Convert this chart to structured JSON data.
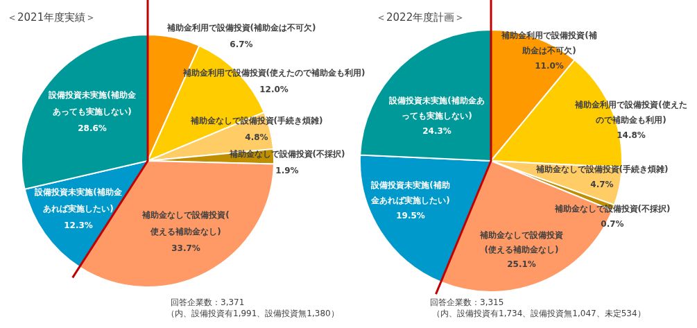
{
  "chart_data": [
    {
      "type": "pie",
      "title": "＜2021年度実績＞",
      "categories": [
        "補助金利用で設備投資(補助金は不可欠)",
        "補助金利用で設備投資(使えたので補助金も利用)",
        "補助金なしで設備投資(手続き煩雑)",
        "補助金なしで設備投資(不採択)",
        "補助金なしで設備投資(使える補助金なし)",
        "設備投資未実施(補助金あれば実施したい)",
        "設備投資未実施(補助金あっても実施しない)"
      ],
      "values": [
        6.7,
        12.0,
        4.8,
        1.9,
        33.7,
        12.3,
        28.6
      ],
      "value_labels": [
        "6.7%",
        "12.0%",
        "4.8%",
        "1.9%",
        "33.7%",
        "12.3%",
        "28.6%"
      ],
      "colors": [
        "#ff9900",
        "#ffcc00",
        "#ffcc66",
        "#bf8f00",
        "#ff9966",
        "#0099cc",
        "#009999"
      ],
      "annotations": [
        "回答企業数：3,371",
        "（内、設備投資有1,991、設備投資無1,380）"
      ]
    },
    {
      "type": "pie",
      "title": "＜2022年度計画＞",
      "categories": [
        "補助金利用で設備投資(補助金は不可欠)",
        "補助金利用で設備投資(使えたので補助金も利用)",
        "補助金なしで設備投資(手続き煩雑)",
        "補助金なしで設備投資(不採択)",
        "補助金なしで設備投資(使える補助金なし)",
        "設備投資未実施(補助金あれば実施したい)",
        "設備投資未実施(補助金あっても実施しない)"
      ],
      "values": [
        11.0,
        14.8,
        4.7,
        0.7,
        25.1,
        19.5,
        24.3
      ],
      "value_labels": [
        "11.0%",
        "14.8%",
        "4.7%",
        "0.7%",
        "25.1%",
        "19.5%",
        "24.3%"
      ],
      "colors": [
        "#ff9900",
        "#ffcc00",
        "#ffcc66",
        "#bf8f00",
        "#ff9966",
        "#0099cc",
        "#009999"
      ],
      "annotations": [
        "回答企業数：3,315",
        "（内、設備投資有1,734、設備投資無1,047、未定534）"
      ]
    }
  ]
}
